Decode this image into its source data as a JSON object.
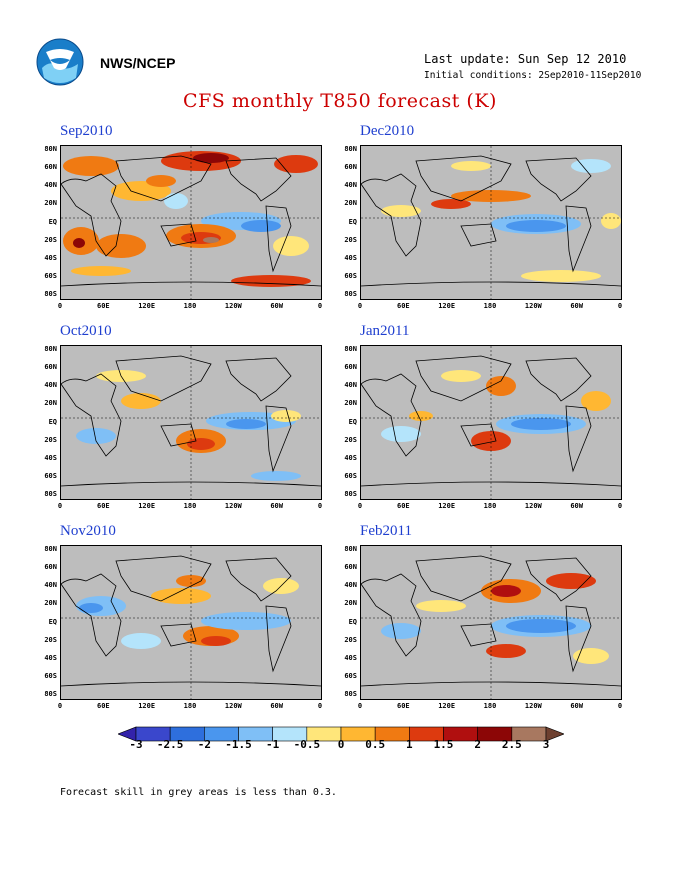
{
  "header": {
    "org": "NWS/NCEP",
    "last_update": "Last update: Sun Sep 12 2010",
    "initial_conditions": "Initial conditions: 2Sep2010-11Sep2010",
    "title": "CFS monthly T850 forecast (K)"
  },
  "panels": [
    {
      "title": "Sep2010"
    },
    {
      "title": "Dec2010"
    },
    {
      "title": "Oct2010"
    },
    {
      "title": "Jan2011"
    },
    {
      "title": "Nov2010"
    },
    {
      "title": "Feb2011"
    }
  ],
  "lat_labels": [
    "80N",
    "60N",
    "40N",
    "20N",
    "EQ",
    "20S",
    "40S",
    "60S",
    "80S"
  ],
  "lon_labels": [
    "0",
    "60E",
    "120E",
    "180",
    "120W",
    "60W",
    "0"
  ],
  "colorbar": {
    "labels": [
      "-3",
      "-2.5",
      "-2",
      "-1.5",
      "-1",
      "-0.5",
      "0",
      "0.5",
      "1",
      "1.5",
      "2",
      "2.5",
      "3"
    ],
    "colors": [
      "#3322aa",
      "#3a47cc",
      "#2e6fdd",
      "#4a96ee",
      "#7fbff6",
      "#b4e4fb",
      "#ffe67a",
      "#ffb732",
      "#f07a12",
      "#dd3a0f",
      "#b00f0f",
      "#8c0606",
      "#a87860",
      "#6e4030"
    ]
  },
  "footnote": "Forecast skill in grey areas is less than 0.3."
}
